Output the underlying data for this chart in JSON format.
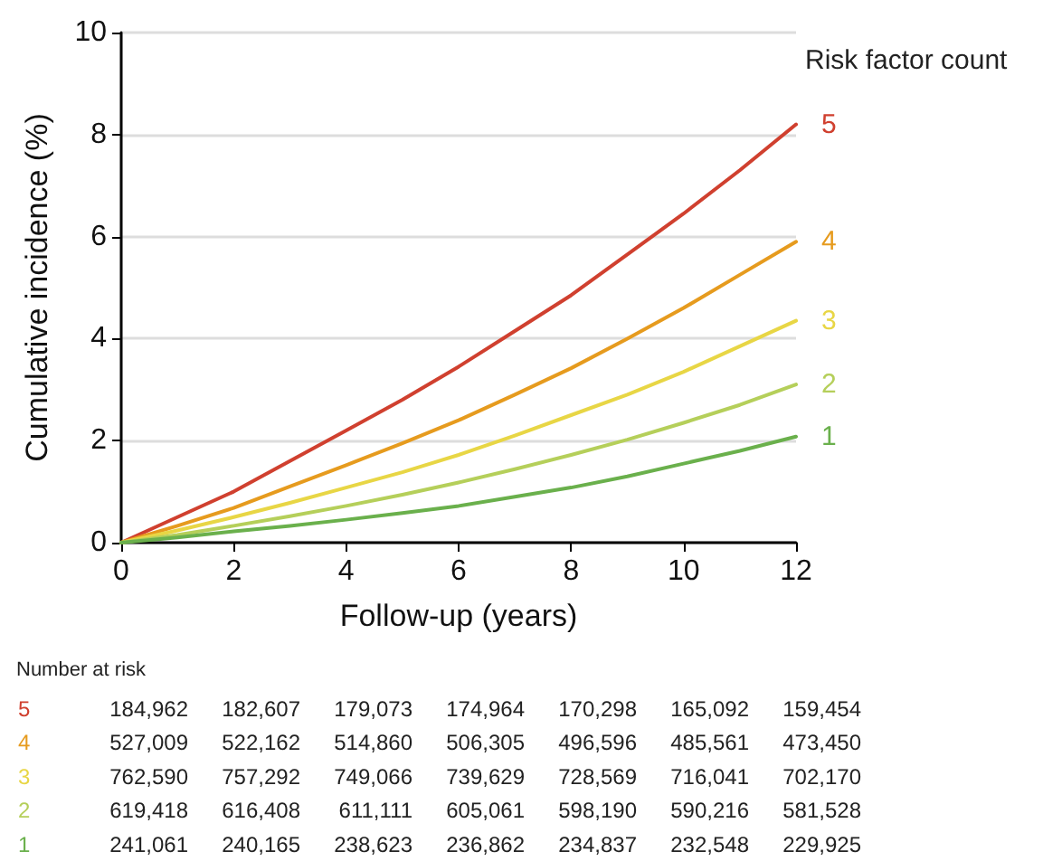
{
  "chart_data": {
    "type": "line",
    "xlabel": "Follow-up (years)",
    "ylabel": "Cumulative incidence (%)",
    "legend_title": "Risk factor count",
    "x": [
      0,
      1,
      2,
      3,
      4,
      5,
      6,
      7,
      8,
      9,
      10,
      11,
      12
    ],
    "series": [
      {
        "name": "5",
        "color": "#d0402f",
        "values": [
          0,
          0.5,
          1.0,
          1.6,
          2.2,
          2.8,
          3.45,
          4.15,
          4.85,
          5.65,
          6.45,
          7.3,
          8.2
        ]
      },
      {
        "name": "4",
        "color": "#e69b1e",
        "values": [
          0,
          0.33,
          0.68,
          1.1,
          1.52,
          1.95,
          2.4,
          2.9,
          3.42,
          4.0,
          4.6,
          5.25,
          5.9
        ]
      },
      {
        "name": "3",
        "color": "#e8d645",
        "values": [
          0,
          0.24,
          0.5,
          0.78,
          1.08,
          1.38,
          1.72,
          2.1,
          2.5,
          2.9,
          3.35,
          3.85,
          4.35
        ]
      },
      {
        "name": "2",
        "color": "#b5cf5a",
        "values": [
          0,
          0.15,
          0.33,
          0.52,
          0.72,
          0.94,
          1.18,
          1.44,
          1.72,
          2.02,
          2.35,
          2.7,
          3.1
        ]
      },
      {
        "name": "1",
        "color": "#6ab04c",
        "values": [
          0,
          0.1,
          0.22,
          0.33,
          0.45,
          0.58,
          0.72,
          0.9,
          1.08,
          1.3,
          1.55,
          1.8,
          2.08
        ]
      }
    ],
    "xlim": [
      0,
      12
    ],
    "xticks": [
      0,
      2,
      4,
      6,
      8,
      10,
      12
    ],
    "ylim": [
      0,
      10
    ],
    "yticks": [
      0,
      2,
      4,
      6,
      8,
      10
    ],
    "grid": "y",
    "legend": false,
    "marker": "none",
    "line_style": "solid",
    "annotations": [
      "Number at risk",
      "5 184,962 182,607 179,073 174,964 170,298 165,092 159,454",
      "4 527,009 522,162 514,860 506,305 496,596 485,561 473,450",
      "3 762,590 757,292 749,066 739,629 728,569 716,041 702,170",
      "2 619,418 616,408 611,111 605,061 598,190 590,216 581,528",
      "1 241,061 240,165 238,623 236,862 234,837 232,548 229,925"
    ]
  }
}
